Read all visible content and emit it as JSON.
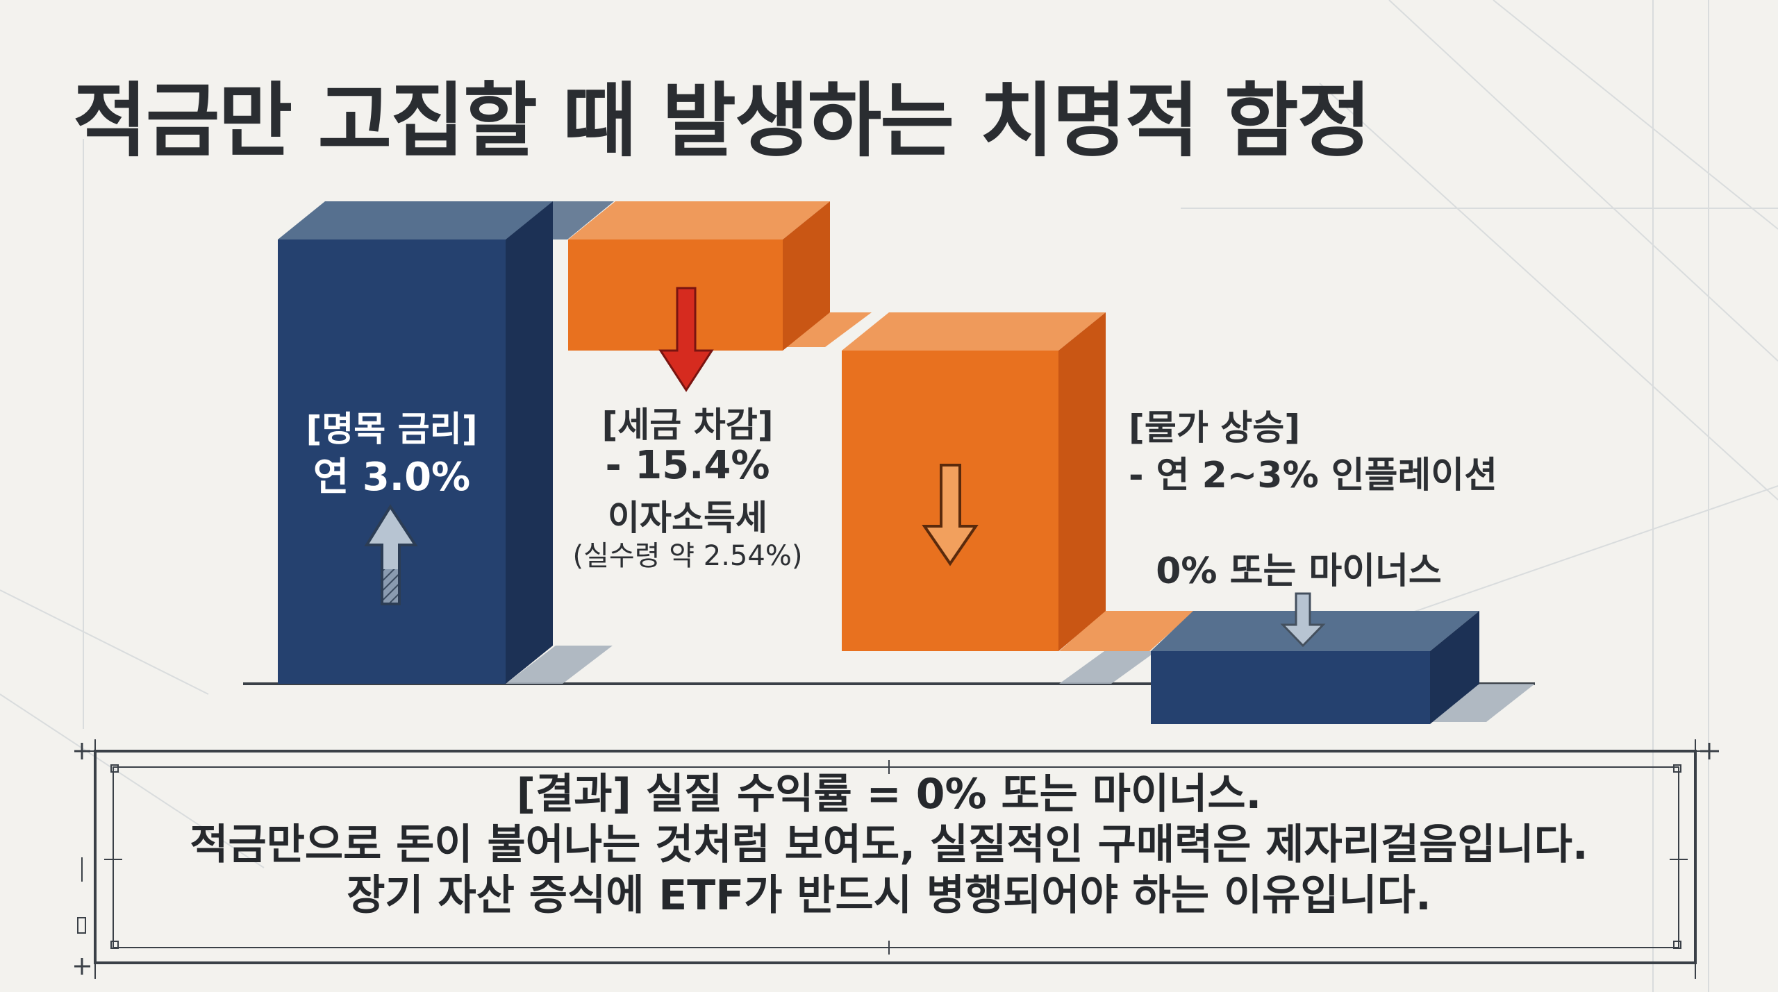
{
  "title": "적금만 고집할 때 발생하는 치명적 함정",
  "stages": {
    "nominal": {
      "label": "[명목 금리]",
      "value": "연 3.0%"
    },
    "tax": {
      "label": "[세금 차감]",
      "value": "- 15.4%",
      "name": "이자소득세",
      "note": "(실수령 약 2.54%)"
    },
    "inflation": {
      "label": "[물가 상승]",
      "value": "- 연 2~3% 인플레이션"
    },
    "real": {
      "label": "0% 또는 마이너스"
    }
  },
  "result": {
    "line1": "[결과] 실질 수익률 = 0% 또는 마이너스.",
    "line2": "적금만으로 돈이 불어나는 것처럼 보여도, 실질적인 구매력은 제자리걸음입니다.",
    "line3": "장기 자산 증식에 ETF가 반드시 병행되어야 하는 이유입니다."
  },
  "colors": {
    "navy": "#25416f",
    "navy_side": "#1c3155",
    "navy_top": "#56708f",
    "orange": "#e8711f",
    "orange_side": "#c95614",
    "orange_top": "#ef9a5b",
    "red_arrow": "#d62b1f",
    "background": "#f3f2ee"
  }
}
